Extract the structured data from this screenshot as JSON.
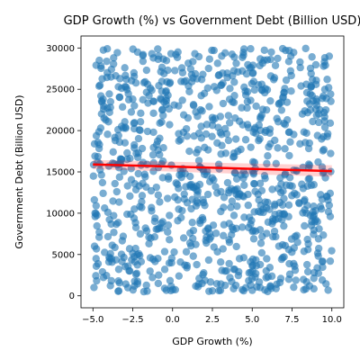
{
  "chart_data": {
    "type": "scatter",
    "title": "GDP Growth (%) vs Government Debt (Billion USD)",
    "xlabel": "GDP Growth (%)",
    "ylabel": "Government Debt (Billion USD)",
    "xlim": [
      -5.75,
      10.75
    ],
    "ylim": [
      -1450,
      31450
    ],
    "xticks": [
      -5.0,
      -2.5,
      0.0,
      2.5,
      5.0,
      7.5,
      10.0
    ],
    "xtick_labels": [
      "−5.0",
      "−2.5",
      "0.0",
      "2.5",
      "5.0",
      "7.5",
      "10.0"
    ],
    "yticks": [
      0,
      5000,
      10000,
      15000,
      20000,
      25000,
      30000
    ],
    "ytick_labels": [
      "0",
      "5000",
      "10000",
      "15000",
      "20000",
      "25000",
      "30000"
    ],
    "grid": false,
    "point_color": "#1f77b4",
    "point_alpha": 0.6,
    "trend_color": "#ff0000",
    "trend_line": {
      "x": [
        -5.0,
        10.0
      ],
      "y": [
        15900,
        15100
      ]
    },
    "sample_points": [
      [
        -4.8,
        27900
      ],
      [
        -4.6,
        28500
      ],
      [
        -4.1,
        29900
      ],
      [
        -3.7,
        28800
      ],
      [
        -3.0,
        27600
      ],
      [
        -2.2,
        29500
      ],
      [
        -1.3,
        29300
      ],
      [
        0.2,
        29200
      ],
      [
        1.4,
        29300
      ],
      [
        2.6,
        29700
      ],
      [
        3.3,
        29400
      ],
      [
        4.9,
        29900
      ],
      [
        6.2,
        29500
      ],
      [
        7.1,
        29700
      ],
      [
        8.0,
        28300
      ],
      [
        9.6,
        27900
      ],
      [
        -4.5,
        24200
      ],
      [
        -3.4,
        25300
      ],
      [
        -1.8,
        25800
      ],
      [
        -0.4,
        24800
      ],
      [
        1.0,
        25400
      ],
      [
        2.0,
        24500
      ],
      [
        3.6,
        25100
      ],
      [
        4.6,
        24300
      ],
      [
        5.6,
        25600
      ],
      [
        7.0,
        24600
      ],
      [
        8.4,
        25600
      ],
      [
        9.8,
        25200
      ],
      [
        -4.3,
        21500
      ],
      [
        -3.2,
        20500
      ],
      [
        -2.0,
        22100
      ],
      [
        -0.8,
        20900
      ],
      [
        0.7,
        21900
      ],
      [
        1.8,
        20500
      ],
      [
        3.0,
        21700
      ],
      [
        4.4,
        20700
      ],
      [
        5.9,
        22500
      ],
      [
        7.2,
        21300
      ],
      [
        8.8,
        21100
      ],
      [
        9.9,
        20900
      ],
      [
        -4.9,
        18400
      ],
      [
        -3.6,
        18800
      ],
      [
        -2.4,
        17900
      ],
      [
        -1.0,
        18300
      ],
      [
        0.5,
        18900
      ],
      [
        1.6,
        17700
      ],
      [
        2.8,
        18500
      ],
      [
        4.1,
        17500
      ],
      [
        5.4,
        18800
      ],
      [
        6.6,
        17900
      ],
      [
        8.0,
        18400
      ],
      [
        9.5,
        17700
      ],
      [
        -4.7,
        16200
      ],
      [
        -4.0,
        15700
      ],
      [
        -3.3,
        16000
      ],
      [
        -2.6,
        15400
      ],
      [
        -1.6,
        15900
      ],
      [
        -0.6,
        16300
      ],
      [
        0.5,
        15200
      ],
      [
        1.7,
        15600
      ],
      [
        2.9,
        15900
      ],
      [
        3.9,
        14900
      ],
      [
        5.2,
        15400
      ],
      [
        6.5,
        16000
      ],
      [
        7.6,
        15200
      ],
      [
        8.6,
        15800
      ],
      [
        9.5,
        15000
      ],
      [
        -4.4,
        13700
      ],
      [
        -3.5,
        12600
      ],
      [
        -2.1,
        13300
      ],
      [
        -0.9,
        12200
      ],
      [
        0.3,
        13500
      ],
      [
        1.5,
        12800
      ],
      [
        2.7,
        13200
      ],
      [
        4.0,
        12300
      ],
      [
        5.5,
        13600
      ],
      [
        6.8,
        12500
      ],
      [
        8.2,
        13000
      ],
      [
        9.7,
        12000
      ],
      [
        -4.8,
        10900
      ],
      [
        -3.7,
        9700
      ],
      [
        -2.4,
        10500
      ],
      [
        -1.1,
        9400
      ],
      [
        0.6,
        10300
      ],
      [
        1.9,
        9200
      ],
      [
        3.2,
        10700
      ],
      [
        4.5,
        9500
      ],
      [
        5.7,
        10100
      ],
      [
        6.9,
        9900
      ],
      [
        8.3,
        10400
      ],
      [
        9.9,
        9600
      ],
      [
        -4.6,
        7700
      ],
      [
        -3.1,
        7200
      ],
      [
        -1.7,
        8200
      ],
      [
        -0.2,
        6800
      ],
      [
        1.1,
        7600
      ],
      [
        2.4,
        7100
      ],
      [
        3.8,
        8000
      ],
      [
        5.1,
        6900
      ],
      [
        6.4,
        7800
      ],
      [
        7.8,
        7300
      ],
      [
        9.2,
        8100
      ],
      [
        -4.9,
        6000
      ],
      [
        -3.9,
        5100
      ],
      [
        -2.7,
        5700
      ],
      [
        -1.4,
        4600
      ],
      [
        0.1,
        5300
      ],
      [
        1.3,
        4800
      ],
      [
        2.6,
        5900
      ],
      [
        4.2,
        4500
      ],
      [
        5.6,
        5200
      ],
      [
        7.0,
        4700
      ],
      [
        8.5,
        5600
      ],
      [
        9.9,
        4200
      ],
      [
        -4.4,
        2900
      ],
      [
        -3.4,
        1800
      ],
      [
        -2.3,
        2600
      ],
      [
        -0.9,
        1500
      ],
      [
        0.4,
        2400
      ],
      [
        1.6,
        1100
      ],
      [
        2.5,
        600
      ],
      [
        3.6,
        2200
      ],
      [
        4.9,
        1300
      ],
      [
        6.2,
        900
      ],
      [
        7.3,
        2000
      ],
      [
        8.6,
        1200
      ],
      [
        9.4,
        1900
      ],
      [
        -1.8,
        500
      ],
      [
        -0.5,
        900
      ],
      [
        5.8,
        700
      ],
      [
        -4.0,
        4100
      ],
      [
        -2.8,
        3600
      ],
      [
        0.9,
        3400
      ],
      [
        3.9,
        3200
      ],
      [
        7.7,
        3100
      ],
      [
        -3.9,
        22800
      ],
      [
        -2.5,
        23800
      ],
      [
        0.1,
        23100
      ],
      [
        2.3,
        22900
      ],
      [
        4.7,
        23500
      ],
      [
        6.7,
        23300
      ],
      [
        9.0,
        22600
      ],
      [
        -4.1,
        27000
      ],
      [
        -2.9,
        26200
      ],
      [
        -0.3,
        27300
      ],
      [
        1.9,
        26800
      ],
      [
        4.1,
        27100
      ],
      [
        6.4,
        26400
      ],
      [
        8.7,
        26900
      ],
      [
        -1.2,
        19800
      ],
      [
        3.4,
        19600
      ],
      [
        6.1,
        19700
      ],
      [
        9.1,
        19400
      ]
    ]
  }
}
